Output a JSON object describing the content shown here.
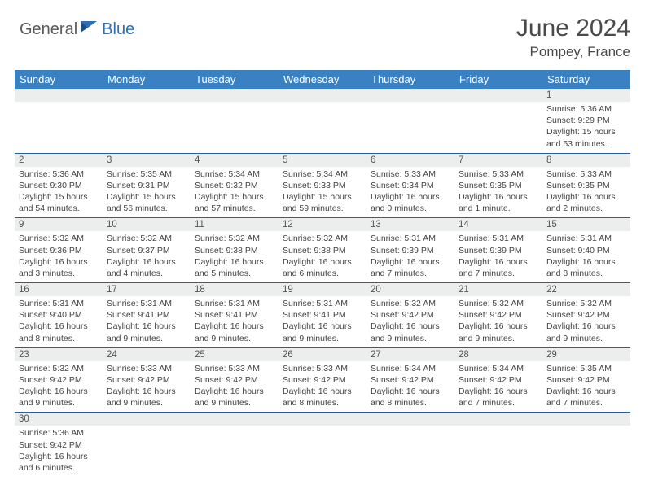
{
  "logo": {
    "general": "General",
    "blue": "Blue"
  },
  "header": {
    "title": "June 2024",
    "location": "Pompey, France"
  },
  "colors": {
    "header_bg": "#3a81c4",
    "header_fg": "#ffffff",
    "daynum_bg": "#eceded",
    "cell_border": "#2a5f99",
    "text": "#444444",
    "logo_gray": "#5a5a5a",
    "logo_blue": "#2f6fb4"
  },
  "daynames": [
    "Sunday",
    "Monday",
    "Tuesday",
    "Wednesday",
    "Thursday",
    "Friday",
    "Saturday"
  ],
  "weeks": [
    [
      {
        "n": "",
        "sunrise": "",
        "sunset": "",
        "daylight": ""
      },
      {
        "n": "",
        "sunrise": "",
        "sunset": "",
        "daylight": ""
      },
      {
        "n": "",
        "sunrise": "",
        "sunset": "",
        "daylight": ""
      },
      {
        "n": "",
        "sunrise": "",
        "sunset": "",
        "daylight": ""
      },
      {
        "n": "",
        "sunrise": "",
        "sunset": "",
        "daylight": ""
      },
      {
        "n": "",
        "sunrise": "",
        "sunset": "",
        "daylight": ""
      },
      {
        "n": "1",
        "sunrise": "Sunrise: 5:36 AM",
        "sunset": "Sunset: 9:29 PM",
        "daylight": "Daylight: 15 hours and 53 minutes."
      }
    ],
    [
      {
        "n": "2",
        "sunrise": "Sunrise: 5:36 AM",
        "sunset": "Sunset: 9:30 PM",
        "daylight": "Daylight: 15 hours and 54 minutes."
      },
      {
        "n": "3",
        "sunrise": "Sunrise: 5:35 AM",
        "sunset": "Sunset: 9:31 PM",
        "daylight": "Daylight: 15 hours and 56 minutes."
      },
      {
        "n": "4",
        "sunrise": "Sunrise: 5:34 AM",
        "sunset": "Sunset: 9:32 PM",
        "daylight": "Daylight: 15 hours and 57 minutes."
      },
      {
        "n": "5",
        "sunrise": "Sunrise: 5:34 AM",
        "sunset": "Sunset: 9:33 PM",
        "daylight": "Daylight: 15 hours and 59 minutes."
      },
      {
        "n": "6",
        "sunrise": "Sunrise: 5:33 AM",
        "sunset": "Sunset: 9:34 PM",
        "daylight": "Daylight: 16 hours and 0 minutes."
      },
      {
        "n": "7",
        "sunrise": "Sunrise: 5:33 AM",
        "sunset": "Sunset: 9:35 PM",
        "daylight": "Daylight: 16 hours and 1 minute."
      },
      {
        "n": "8",
        "sunrise": "Sunrise: 5:33 AM",
        "sunset": "Sunset: 9:35 PM",
        "daylight": "Daylight: 16 hours and 2 minutes."
      }
    ],
    [
      {
        "n": "9",
        "sunrise": "Sunrise: 5:32 AM",
        "sunset": "Sunset: 9:36 PM",
        "daylight": "Daylight: 16 hours and 3 minutes."
      },
      {
        "n": "10",
        "sunrise": "Sunrise: 5:32 AM",
        "sunset": "Sunset: 9:37 PM",
        "daylight": "Daylight: 16 hours and 4 minutes."
      },
      {
        "n": "11",
        "sunrise": "Sunrise: 5:32 AM",
        "sunset": "Sunset: 9:38 PM",
        "daylight": "Daylight: 16 hours and 5 minutes."
      },
      {
        "n": "12",
        "sunrise": "Sunrise: 5:32 AM",
        "sunset": "Sunset: 9:38 PM",
        "daylight": "Daylight: 16 hours and 6 minutes."
      },
      {
        "n": "13",
        "sunrise": "Sunrise: 5:31 AM",
        "sunset": "Sunset: 9:39 PM",
        "daylight": "Daylight: 16 hours and 7 minutes."
      },
      {
        "n": "14",
        "sunrise": "Sunrise: 5:31 AM",
        "sunset": "Sunset: 9:39 PM",
        "daylight": "Daylight: 16 hours and 7 minutes."
      },
      {
        "n": "15",
        "sunrise": "Sunrise: 5:31 AM",
        "sunset": "Sunset: 9:40 PM",
        "daylight": "Daylight: 16 hours and 8 minutes."
      }
    ],
    [
      {
        "n": "16",
        "sunrise": "Sunrise: 5:31 AM",
        "sunset": "Sunset: 9:40 PM",
        "daylight": "Daylight: 16 hours and 8 minutes."
      },
      {
        "n": "17",
        "sunrise": "Sunrise: 5:31 AM",
        "sunset": "Sunset: 9:41 PM",
        "daylight": "Daylight: 16 hours and 9 minutes."
      },
      {
        "n": "18",
        "sunrise": "Sunrise: 5:31 AM",
        "sunset": "Sunset: 9:41 PM",
        "daylight": "Daylight: 16 hours and 9 minutes."
      },
      {
        "n": "19",
        "sunrise": "Sunrise: 5:31 AM",
        "sunset": "Sunset: 9:41 PM",
        "daylight": "Daylight: 16 hours and 9 minutes."
      },
      {
        "n": "20",
        "sunrise": "Sunrise: 5:32 AM",
        "sunset": "Sunset: 9:42 PM",
        "daylight": "Daylight: 16 hours and 9 minutes."
      },
      {
        "n": "21",
        "sunrise": "Sunrise: 5:32 AM",
        "sunset": "Sunset: 9:42 PM",
        "daylight": "Daylight: 16 hours and 9 minutes."
      },
      {
        "n": "22",
        "sunrise": "Sunrise: 5:32 AM",
        "sunset": "Sunset: 9:42 PM",
        "daylight": "Daylight: 16 hours and 9 minutes."
      }
    ],
    [
      {
        "n": "23",
        "sunrise": "Sunrise: 5:32 AM",
        "sunset": "Sunset: 9:42 PM",
        "daylight": "Daylight: 16 hours and 9 minutes."
      },
      {
        "n": "24",
        "sunrise": "Sunrise: 5:33 AM",
        "sunset": "Sunset: 9:42 PM",
        "daylight": "Daylight: 16 hours and 9 minutes."
      },
      {
        "n": "25",
        "sunrise": "Sunrise: 5:33 AM",
        "sunset": "Sunset: 9:42 PM",
        "daylight": "Daylight: 16 hours and 9 minutes."
      },
      {
        "n": "26",
        "sunrise": "Sunrise: 5:33 AM",
        "sunset": "Sunset: 9:42 PM",
        "daylight": "Daylight: 16 hours and 8 minutes."
      },
      {
        "n": "27",
        "sunrise": "Sunrise: 5:34 AM",
        "sunset": "Sunset: 9:42 PM",
        "daylight": "Daylight: 16 hours and 8 minutes."
      },
      {
        "n": "28",
        "sunrise": "Sunrise: 5:34 AM",
        "sunset": "Sunset: 9:42 PM",
        "daylight": "Daylight: 16 hours and 7 minutes."
      },
      {
        "n": "29",
        "sunrise": "Sunrise: 5:35 AM",
        "sunset": "Sunset: 9:42 PM",
        "daylight": "Daylight: 16 hours and 7 minutes."
      }
    ],
    [
      {
        "n": "30",
        "sunrise": "Sunrise: 5:36 AM",
        "sunset": "Sunset: 9:42 PM",
        "daylight": "Daylight: 16 hours and 6 minutes."
      },
      {
        "n": "",
        "sunrise": "",
        "sunset": "",
        "daylight": ""
      },
      {
        "n": "",
        "sunrise": "",
        "sunset": "",
        "daylight": ""
      },
      {
        "n": "",
        "sunrise": "",
        "sunset": "",
        "daylight": ""
      },
      {
        "n": "",
        "sunrise": "",
        "sunset": "",
        "daylight": ""
      },
      {
        "n": "",
        "sunrise": "",
        "sunset": "",
        "daylight": ""
      },
      {
        "n": "",
        "sunrise": "",
        "sunset": "",
        "daylight": ""
      }
    ]
  ]
}
